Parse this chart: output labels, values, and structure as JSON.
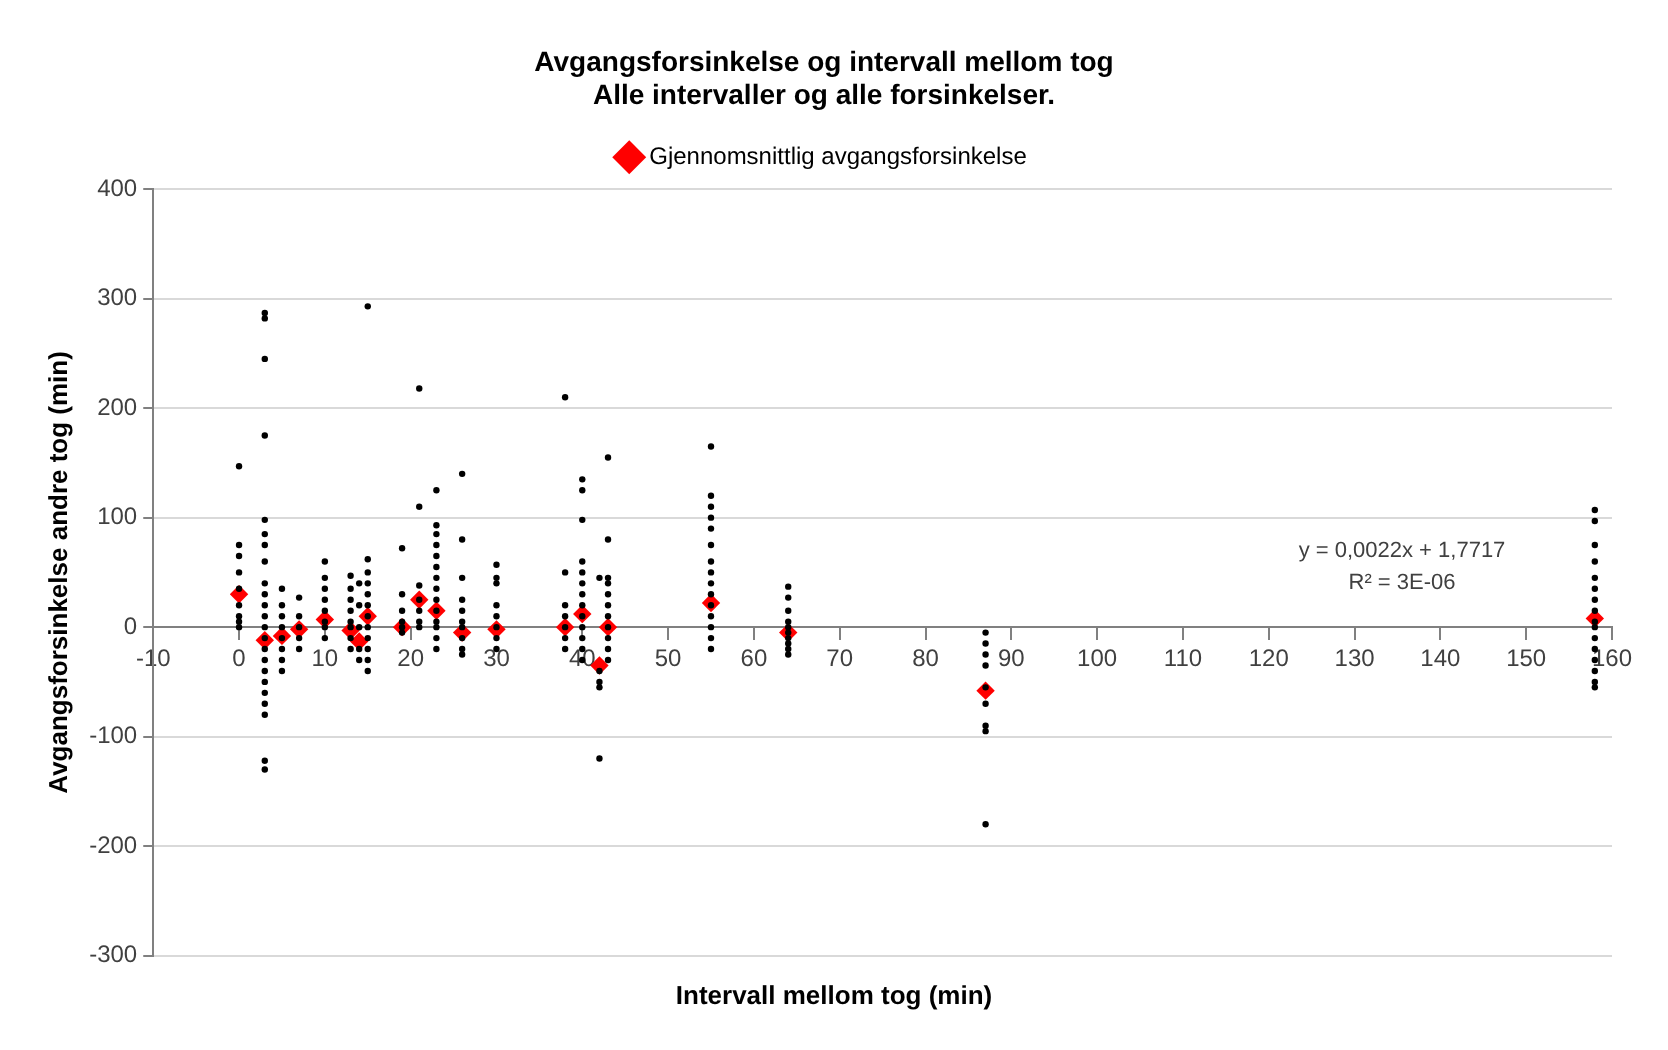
{
  "chart_data": {
    "type": "scatter",
    "title": "Avgangsforsinkelse og intervall mellom tog\nAlle intervaller og alle forsinkelser.",
    "xlabel": "Intervall mellom tog (min)",
    "ylabel": "Avgangsforsinkelse andre tog (min)",
    "annotations": [
      "y = 0,0022x + 1,7717",
      "R² = 3E-06"
    ],
    "xlim": [
      -10,
      160
    ],
    "xticks": [
      -10,
      0,
      10,
      20,
      30,
      40,
      50,
      60,
      70,
      80,
      90,
      100,
      110,
      120,
      130,
      140,
      150,
      160
    ],
    "ylim": [
      -300,
      400
    ],
    "yticks": [
      -300,
      -200,
      -100,
      0,
      100,
      200,
      300,
      400
    ],
    "grid": "y",
    "legend": "top",
    "series": [
      {
        "color": "#000000",
        "marker": "circle",
        "x": [
          0,
          0,
          0,
          0,
          0,
          0,
          0,
          0,
          0,
          3,
          3,
          3,
          3,
          3,
          3,
          3,
          3,
          3,
          3,
          3,
          3,
          3,
          3,
          3,
          3,
          3,
          3,
          3,
          3,
          3,
          3,
          3,
          5,
          5,
          5,
          5,
          5,
          5,
          5,
          5,
          7,
          7,
          7,
          7,
          7,
          10,
          10,
          10,
          10,
          10,
          10,
          10,
          10,
          13,
          13,
          13,
          13,
          13,
          13,
          13,
          13,
          14,
          14,
          14,
          14,
          14,
          15,
          15,
          15,
          15,
          15,
          15,
          15,
          15,
          15,
          15,
          15,
          15,
          19,
          19,
          19,
          19,
          19,
          19,
          21,
          21,
          21,
          21,
          21,
          21,
          21,
          23,
          23,
          23,
          23,
          23,
          23,
          23,
          23,
          23,
          23,
          23,
          23,
          23,
          23,
          26,
          26,
          26,
          26,
          26,
          26,
          26,
          26,
          26,
          26,
          30,
          30,
          30,
          30,
          30,
          30,
          30,
          30,
          38,
          38,
          38,
          38,
          38,
          38,
          38,
          40,
          40,
          40,
          40,
          40,
          40,
          40,
          40,
          40,
          40,
          40,
          40,
          40,
          42,
          42,
          42,
          42,
          42,
          43,
          43,
          43,
          43,
          43,
          43,
          43,
          43,
          43,
          43,
          43,
          55,
          55,
          55,
          55,
          55,
          55,
          55,
          55,
          55,
          55,
          55,
          55,
          55,
          55,
          55,
          64,
          64,
          64,
          64,
          64,
          64,
          64,
          64,
          64,
          64,
          87,
          87,
          87,
          87,
          87,
          87,
          87,
          87,
          87,
          158,
          158,
          158,
          158,
          158,
          158,
          158,
          158,
          158,
          158,
          158,
          158,
          158,
          158,
          158,
          158
        ],
        "values": [
          147,
          75,
          65,
          50,
          35,
          20,
          10,
          5,
          0,
          287,
          282,
          245,
          175,
          98,
          85,
          75,
          60,
          40,
          30,
          20,
          10,
          0,
          -10,
          -20,
          -30,
          -40,
          -50,
          -60,
          -70,
          -80,
          -122,
          -130,
          35,
          20,
          10,
          0,
          -10,
          -20,
          -30,
          -40,
          27,
          10,
          0,
          -10,
          -20,
          60,
          45,
          35,
          25,
          15,
          5,
          0,
          -10,
          47,
          35,
          25,
          15,
          5,
          0,
          -10,
          -20,
          40,
          20,
          0,
          -20,
          -30,
          293,
          62,
          50,
          40,
          30,
          20,
          10,
          0,
          -10,
          -20,
          -30,
          -40,
          72,
          30,
          15,
          5,
          0,
          -5,
          218,
          110,
          38,
          25,
          15,
          5,
          0,
          125,
          93,
          85,
          75,
          65,
          55,
          45,
          35,
          25,
          15,
          5,
          0,
          -10,
          -20,
          140,
          80,
          45,
          25,
          15,
          5,
          0,
          -10,
          -20,
          -25,
          57,
          45,
          40,
          20,
          10,
          0,
          -10,
          -20,
          210,
          50,
          20,
          10,
          0,
          -10,
          -20,
          135,
          125,
          98,
          60,
          50,
          40,
          30,
          20,
          10,
          0,
          -10,
          -20,
          -30,
          45,
          -40,
          -50,
          -55,
          -120,
          155,
          80,
          45,
          40,
          30,
          20,
          10,
          0,
          -10,
          -20,
          -30,
          165,
          120,
          110,
          100,
          90,
          75,
          60,
          50,
          40,
          30,
          20,
          10,
          0,
          -10,
          -20,
          37,
          27,
          15,
          5,
          0,
          -5,
          -10,
          -15,
          -20,
          -25,
          -5,
          -15,
          -25,
          -35,
          -55,
          -70,
          -90,
          -95,
          -180,
          107,
          97,
          75,
          60,
          45,
          35,
          25,
          15,
          5,
          0,
          -10,
          -20,
          -30,
          -40,
          -50,
          -55
        ]
      },
      {
        "name": "Gjennomsnittlig avgangsforsinkelse",
        "color": "#ff0000",
        "marker": "diamond",
        "x": [
          0,
          3,
          5,
          7,
          10,
          13,
          14,
          15,
          19,
          21,
          23,
          26,
          30,
          38,
          40,
          42,
          43,
          55,
          64,
          87,
          158
        ],
        "values": [
          30,
          -12,
          -8,
          -2,
          7,
          -3,
          -13,
          10,
          0,
          25,
          15,
          -5,
          -2,
          0,
          12,
          -35,
          0,
          22,
          -5,
          -58,
          8
        ]
      }
    ]
  }
}
